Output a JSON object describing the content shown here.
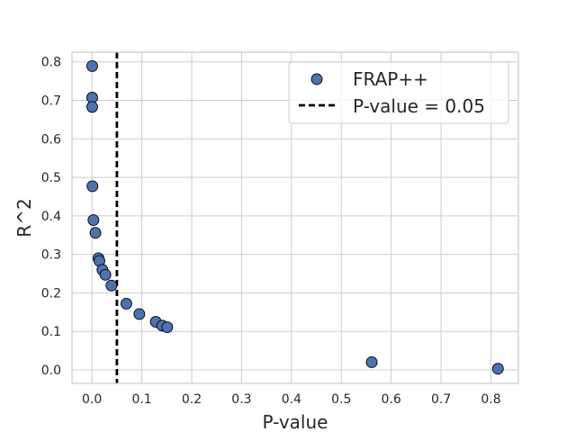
{
  "chart_data": {
    "type": "scatter",
    "title": "",
    "xlabel": "P-value",
    "ylabel": "R^2",
    "xlim": [
      -0.04,
      0.855
    ],
    "ylim": [
      -0.035,
      0.825
    ],
    "xticks": [
      0.0,
      0.1,
      0.2,
      0.3,
      0.4,
      0.5,
      0.6,
      0.7,
      0.8
    ],
    "xtick_labels": [
      "0.0",
      "0.1",
      "0.2",
      "0.3",
      "0.4",
      "0.5",
      "0.6",
      "0.7",
      "0.8"
    ],
    "yticks": [
      0.0,
      0.1,
      0.2,
      0.3,
      0.4,
      0.5,
      0.6,
      0.7,
      0.8
    ],
    "ytick_labels": [
      "0.0",
      "0.1",
      "0.2",
      "0.3",
      "0.4",
      "0.5",
      "0.6",
      "0.7",
      "0.8"
    ],
    "grid": true,
    "legend_position": "top-right",
    "series": [
      {
        "name": "FRAP++",
        "color": "#4c72b0",
        "points": [
          {
            "x": 0.0005,
            "y": 0.789
          },
          {
            "x": 0.0005,
            "y": 0.707
          },
          {
            "x": 0.0005,
            "y": 0.683
          },
          {
            "x": 0.001,
            "y": 0.477
          },
          {
            "x": 0.003,
            "y": 0.389
          },
          {
            "x": 0.007,
            "y": 0.356
          },
          {
            "x": 0.013,
            "y": 0.29
          },
          {
            "x": 0.015,
            "y": 0.283
          },
          {
            "x": 0.021,
            "y": 0.26
          },
          {
            "x": 0.027,
            "y": 0.247
          },
          {
            "x": 0.039,
            "y": 0.219
          },
          {
            "x": 0.069,
            "y": 0.172
          },
          {
            "x": 0.095,
            "y": 0.145
          },
          {
            "x": 0.128,
            "y": 0.125
          },
          {
            "x": 0.141,
            "y": 0.115
          },
          {
            "x": 0.151,
            "y": 0.111
          },
          {
            "x": 0.561,
            "y": 0.02
          },
          {
            "x": 0.814,
            "y": 0.003
          }
        ]
      }
    ],
    "reference_line": {
      "name": "P-value = 0.05",
      "orientation": "vertical",
      "x": 0.05,
      "color": "#000000",
      "style": "dashed"
    }
  }
}
